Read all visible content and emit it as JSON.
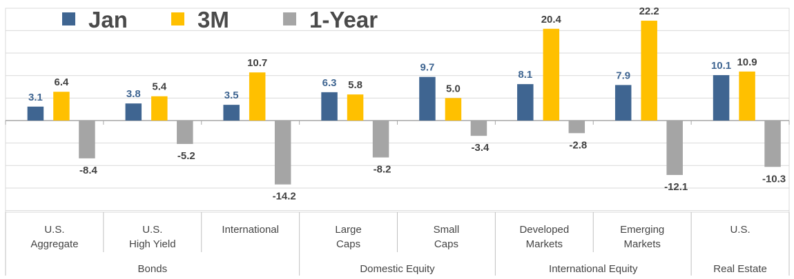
{
  "chart_data": {
    "type": "bar",
    "title": "",
    "xlabel": "",
    "ylabel": "",
    "ylim": [
      -30,
      45
    ],
    "grid": true,
    "legend_position": "top-left",
    "categories": [
      [
        "U.S.",
        "Aggregate"
      ],
      [
        "U.S.",
        "High Yield"
      ],
      [
        "International"
      ],
      [
        "Large",
        "Caps"
      ],
      [
        "Small",
        "Caps"
      ],
      [
        "Developed",
        "Markets"
      ],
      [
        "Emerging",
        "Markets"
      ],
      [
        "U.S."
      ]
    ],
    "groups": [
      {
        "label": "Bonds",
        "span": [
          0,
          2
        ]
      },
      {
        "label": "Domestic Equity",
        "span": [
          3,
          4
        ]
      },
      {
        "label": "International Equity",
        "span": [
          5,
          6
        ]
      },
      {
        "label": "Real Estate",
        "span": [
          7,
          7
        ]
      }
    ],
    "series": [
      {
        "name": "Jan",
        "color": "#3f6591",
        "label_color": "#3f6591",
        "values": [
          3.1,
          3.8,
          3.5,
          6.3,
          9.7,
          8.1,
          7.9,
          10.1
        ],
        "labels": [
          "3.1",
          "3.8",
          "3.5",
          "6.3",
          "9.7",
          "8.1",
          "7.9",
          "10.1"
        ]
      },
      {
        "name": "3M",
        "color": "#ffc000",
        "label_color": "#404040",
        "values": [
          6.4,
          5.4,
          10.7,
          5.8,
          5.0,
          20.4,
          22.2,
          10.9
        ],
        "labels": [
          "6.4",
          "5.4",
          "10.7",
          "5.8",
          "5.0",
          "20.4",
          "22.2",
          "10.9"
        ]
      },
      {
        "name": "1-Year",
        "color": "#a5a5a5",
        "label_color": "#404040",
        "values": [
          -8.4,
          -5.2,
          -14.2,
          -8.2,
          -3.4,
          -2.8,
          -12.1,
          -10.3
        ],
        "labels": [
          "-8.4",
          "-5.2",
          "-14.2",
          "-8.2",
          "-3.4",
          "-2.8",
          "-12.1",
          "-10.3"
        ]
      }
    ]
  }
}
